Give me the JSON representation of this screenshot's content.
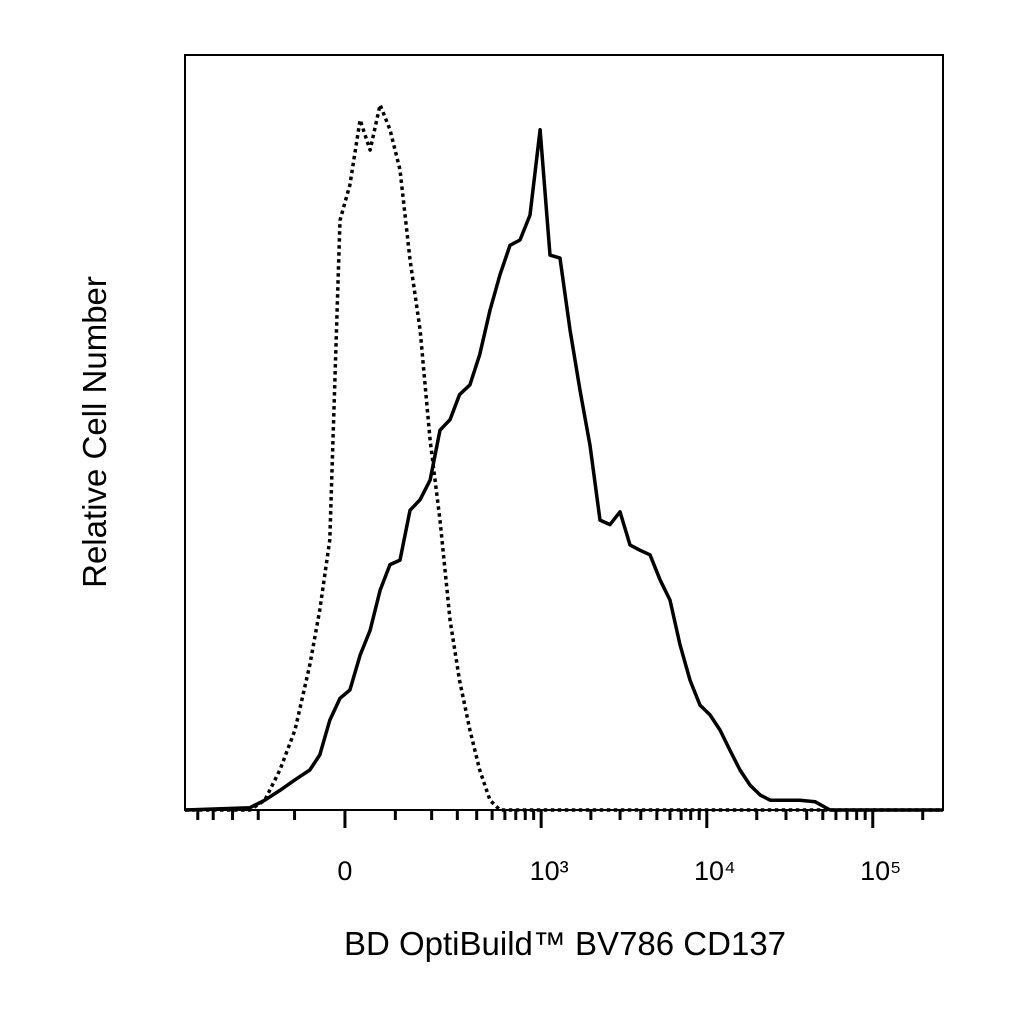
{
  "chart_data": {
    "type": "line",
    "xlabel": "BD OptiBuild™ BV786 CD137",
    "ylabel": "Relative Cell Number",
    "xscale": "biexponential",
    "xscale_width": 132,
    "xlim": [
      -600,
      265000
    ],
    "ylim": [
      0,
      100
    ],
    "xticks": [
      0,
      {
        "value": 1000,
        "label": "10³"
      },
      {
        "value": 10000,
        "label": "10⁴"
      },
      {
        "value": 100000,
        "label": "10⁵"
      }
    ],
    "xminor_ticks": [
      -500,
      -400,
      -300,
      -200,
      -100,
      100,
      200,
      300,
      400,
      500,
      600,
      700,
      800,
      900,
      2000,
      3000,
      4000,
      5000,
      6000,
      7000,
      8000,
      9000,
      20000,
      30000,
      40000,
      50000,
      60000,
      70000,
      80000,
      90000,
      200000
    ],
    "x": [
      -600,
      -229,
      -179,
      -136,
      -99,
      -67,
      -47,
      -28,
      -9,
      9,
      28,
      47,
      67,
      88,
      111,
      136,
      164,
      195,
      229,
      268,
      310,
      362,
      418,
      485,
      560,
      645,
      743,
      855,
      985,
      1131,
      1301,
      1496,
      1719,
      1976,
      2270,
      2607,
      2996,
      3445,
      3960,
      4545,
      5220,
      6000,
      6890,
      7920,
      9095,
      10450,
      12010,
      13800,
      15860,
      18220,
      20930,
      24050,
      36400,
      44900,
      55300,
      265000
    ],
    "series": [
      {
        "color": "#000000",
        "style": "dotted",
        "values": [
          0,
          0,
          1.3,
          5.3,
          10.6,
          19.2,
          26.5,
          35.8,
          78.1,
          82.8,
          91.4,
          87.4,
          93.4,
          90.1,
          84.8,
          72.9,
          63.6,
          49.0,
          38.4,
          25.2,
          17.2,
          10.6,
          5.3,
          1.3,
          0,
          0,
          0,
          0,
          0,
          0,
          0,
          0,
          0,
          0,
          0,
          0,
          0,
          0,
          0,
          0,
          0,
          0,
          0,
          0,
          0,
          0,
          0,
          0,
          0,
          0,
          0,
          0,
          0,
          0,
          0,
          0
        ]
      },
      {
        "color": "#000000",
        "style": "solid",
        "values": [
          0,
          0.3,
          1.3,
          2.6,
          4.0,
          5.3,
          7.3,
          11.9,
          14.8,
          15.9,
          20.5,
          23.8,
          29.1,
          32.5,
          33.1,
          39.7,
          41.1,
          43.7,
          50.3,
          51.7,
          55.0,
          56.3,
          60.3,
          66.2,
          70.9,
          74.8,
          75.5,
          78.8,
          90.1,
          73.5,
          73.1,
          63.6,
          55.6,
          48.3,
          38.4,
          37.8,
          39.5,
          35.1,
          34.4,
          33.8,
          30.5,
          27.8,
          21.9,
          17.2,
          13.9,
          12.6,
          10.6,
          7.9,
          5.3,
          3.3,
          2.0,
          1.3,
          1.3,
          1.1,
          0,
          0
        ]
      }
    ]
  }
}
